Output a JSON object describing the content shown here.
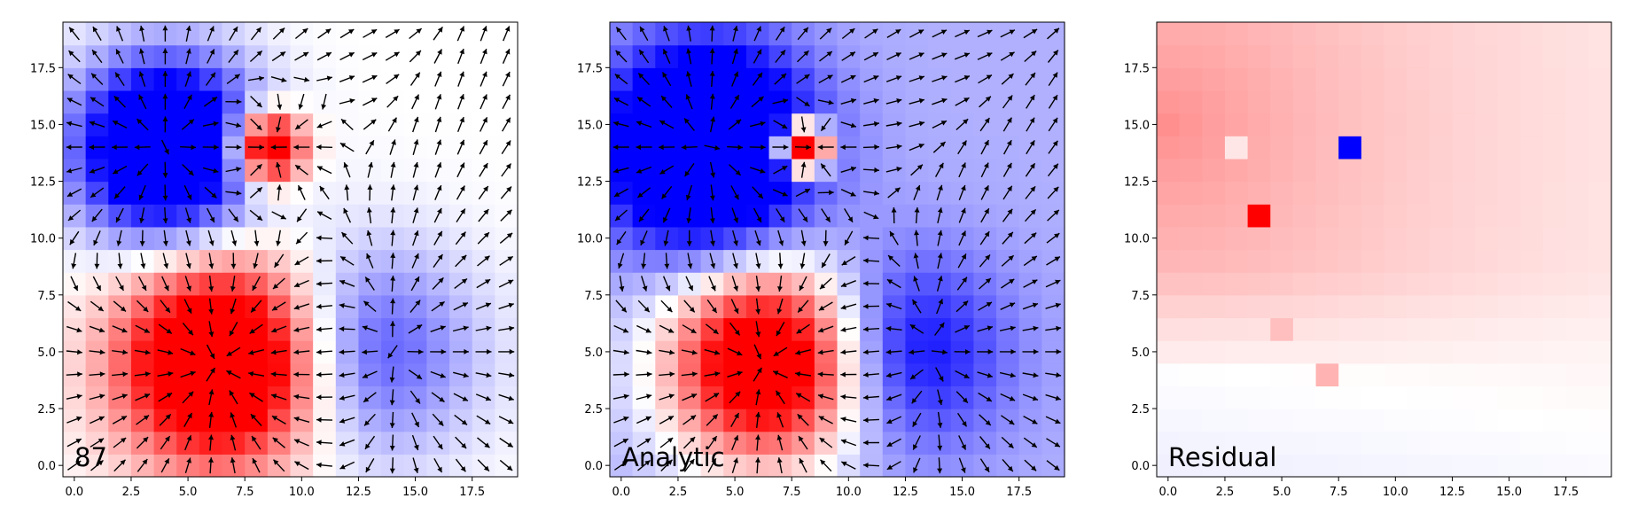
{
  "figure": {
    "colormap": "bwr",
    "colors": {
      "low": "#0000ff",
      "mid": "#ffffff",
      "high": "#ff0000",
      "arrow": "#000000"
    }
  },
  "chart_data": [
    {
      "type": "heatmap",
      "label": "87",
      "grid": [
        20,
        20
      ],
      "xlim": [
        -0.5,
        19.5
      ],
      "ylim": [
        -0.5,
        19.5
      ],
      "xticks": [
        0.0,
        2.5,
        5.0,
        7.5,
        10.0,
        12.5,
        15.0,
        17.5
      ],
      "yticks": [
        0.0,
        2.5,
        5.0,
        7.5,
        10.0,
        12.5,
        15.0,
        17.5
      ],
      "tick_labels": [
        "0.0",
        "2.5",
        "5.0",
        "7.5",
        "10.0",
        "12.5",
        "15.0",
        "17.5"
      ],
      "quiver": true,
      "sources": [
        {
          "x": 4,
          "y": 14,
          "strength": -1.0,
          "width": 2.7
        },
        {
          "x": 6.5,
          "y": 4.5,
          "strength": 1.0,
          "width": 3.0
        },
        {
          "x": 13,
          "y": 5,
          "strength": -0.38,
          "width": 3.2
        },
        {
          "x": 8.5,
          "y": 14,
          "strength": 0.9,
          "width": 1.1
        }
      ],
      "clim": [
        -0.55,
        0.55
      ]
    },
    {
      "type": "heatmap",
      "label": "Analytic",
      "grid": [
        20,
        20
      ],
      "xlim": [
        -0.5,
        19.5
      ],
      "ylim": [
        -0.5,
        19.5
      ],
      "xticks": [
        0.0,
        2.5,
        5.0,
        7.5,
        10.0,
        12.5,
        15.0,
        17.5
      ],
      "yticks": [
        0.0,
        2.5,
        5.0,
        7.5,
        10.0,
        12.5,
        15.0,
        17.5
      ],
      "tick_labels": [
        "0.0",
        "2.5",
        "5.0",
        "7.5",
        "10.0",
        "12.5",
        "15.0",
        "17.5"
      ],
      "quiver": true,
      "background": -0.17,
      "sources": [
        {
          "x": 3.8,
          "y": 14,
          "strength": -1.0,
          "width": 3.0
        },
        {
          "x": 6.5,
          "y": 4.5,
          "strength": 1.0,
          "width": 3.0
        },
        {
          "x": 12.5,
          "y": 5,
          "strength": -0.4,
          "width": 3.0
        },
        {
          "x": 8,
          "y": 14,
          "strength": 1.6,
          "width": 0.7
        }
      ],
      "clim": [
        -0.55,
        0.55
      ]
    },
    {
      "type": "heatmap",
      "label": "Residual",
      "grid": [
        20,
        20
      ],
      "xlim": [
        -0.5,
        19.5
      ],
      "ylim": [
        -0.5,
        19.5
      ],
      "xticks": [
        0.0,
        2.5,
        5.0,
        7.5,
        10.0,
        12.5,
        15.0,
        17.5
      ],
      "yticks": [
        0.0,
        2.5,
        5.0,
        7.5,
        10.0,
        12.5,
        15.0,
        17.5
      ],
      "tick_labels": [
        "0.0",
        "2.5",
        "5.0",
        "7.5",
        "10.0",
        "12.5",
        "15.0",
        "17.5"
      ],
      "quiver": false,
      "gradient": {
        "origin": [
          0,
          15
        ],
        "peak": 0.42,
        "decay": 0.035,
        "zero_row": 4.5
      },
      "outliers": [
        {
          "x": 8,
          "y": 14,
          "value": -1.0
        },
        {
          "x": 4,
          "y": 11,
          "value": 1.0
        },
        {
          "x": 3,
          "y": 14,
          "value": 0.1
        },
        {
          "x": 7,
          "y": 4,
          "value": 0.3
        },
        {
          "x": 5,
          "y": 6,
          "value": 0.25
        }
      ],
      "clim": [
        -1,
        1
      ]
    }
  ]
}
